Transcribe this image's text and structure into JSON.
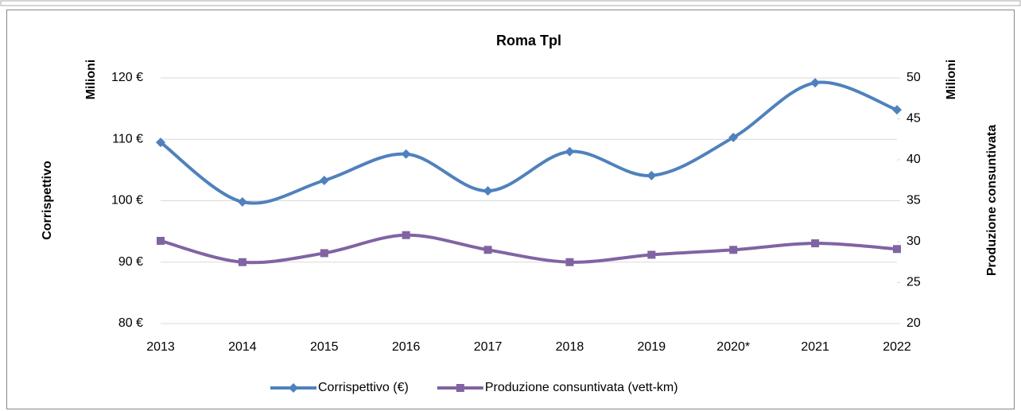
{
  "chart_data": {
    "type": "line",
    "title": "Roma Tpl",
    "y_label": "Corrispettivo",
    "y_unit": "Milioni",
    "y2_label": "Produzione consuntivata",
    "y2_unit": "Milioni",
    "categories": [
      "2013",
      "2014",
      "2015",
      "2016",
      "2017",
      "2018",
      "2019",
      "2020*",
      "2021",
      "2022"
    ],
    "series": [
      {
        "name": "Corrispettivo (€)",
        "color": "#4f81bd",
        "marker": "diamond",
        "values": [
          109.5,
          99.8,
          103.3,
          107.6,
          101.6,
          108.0,
          104.1,
          110.3,
          119.2,
          114.8
        ]
      },
      {
        "name": "Produzione consuntivata (vett-km)",
        "color": "#8064a2",
        "marker": "square",
        "axis": "y2",
        "values": [
          30.1,
          27.5,
          28.6,
          30.8,
          29.0,
          27.5,
          28.4,
          29.0,
          29.8,
          29.1
        ]
      }
    ],
    "ylim": [
      80,
      120
    ],
    "yticks": [
      {
        "value": 80,
        "label": "80 €"
      },
      {
        "value": 90,
        "label": "90 €"
      },
      {
        "value": 100,
        "label": "100 €"
      },
      {
        "value": 110,
        "label": "110 €"
      },
      {
        "value": 120,
        "label": "120 €"
      }
    ],
    "y2lim": [
      20,
      50
    ],
    "y2ticks": [
      20,
      25,
      30,
      35,
      40,
      45,
      50
    ],
    "grid": true,
    "smooth": true,
    "legend": "bottom"
  }
}
